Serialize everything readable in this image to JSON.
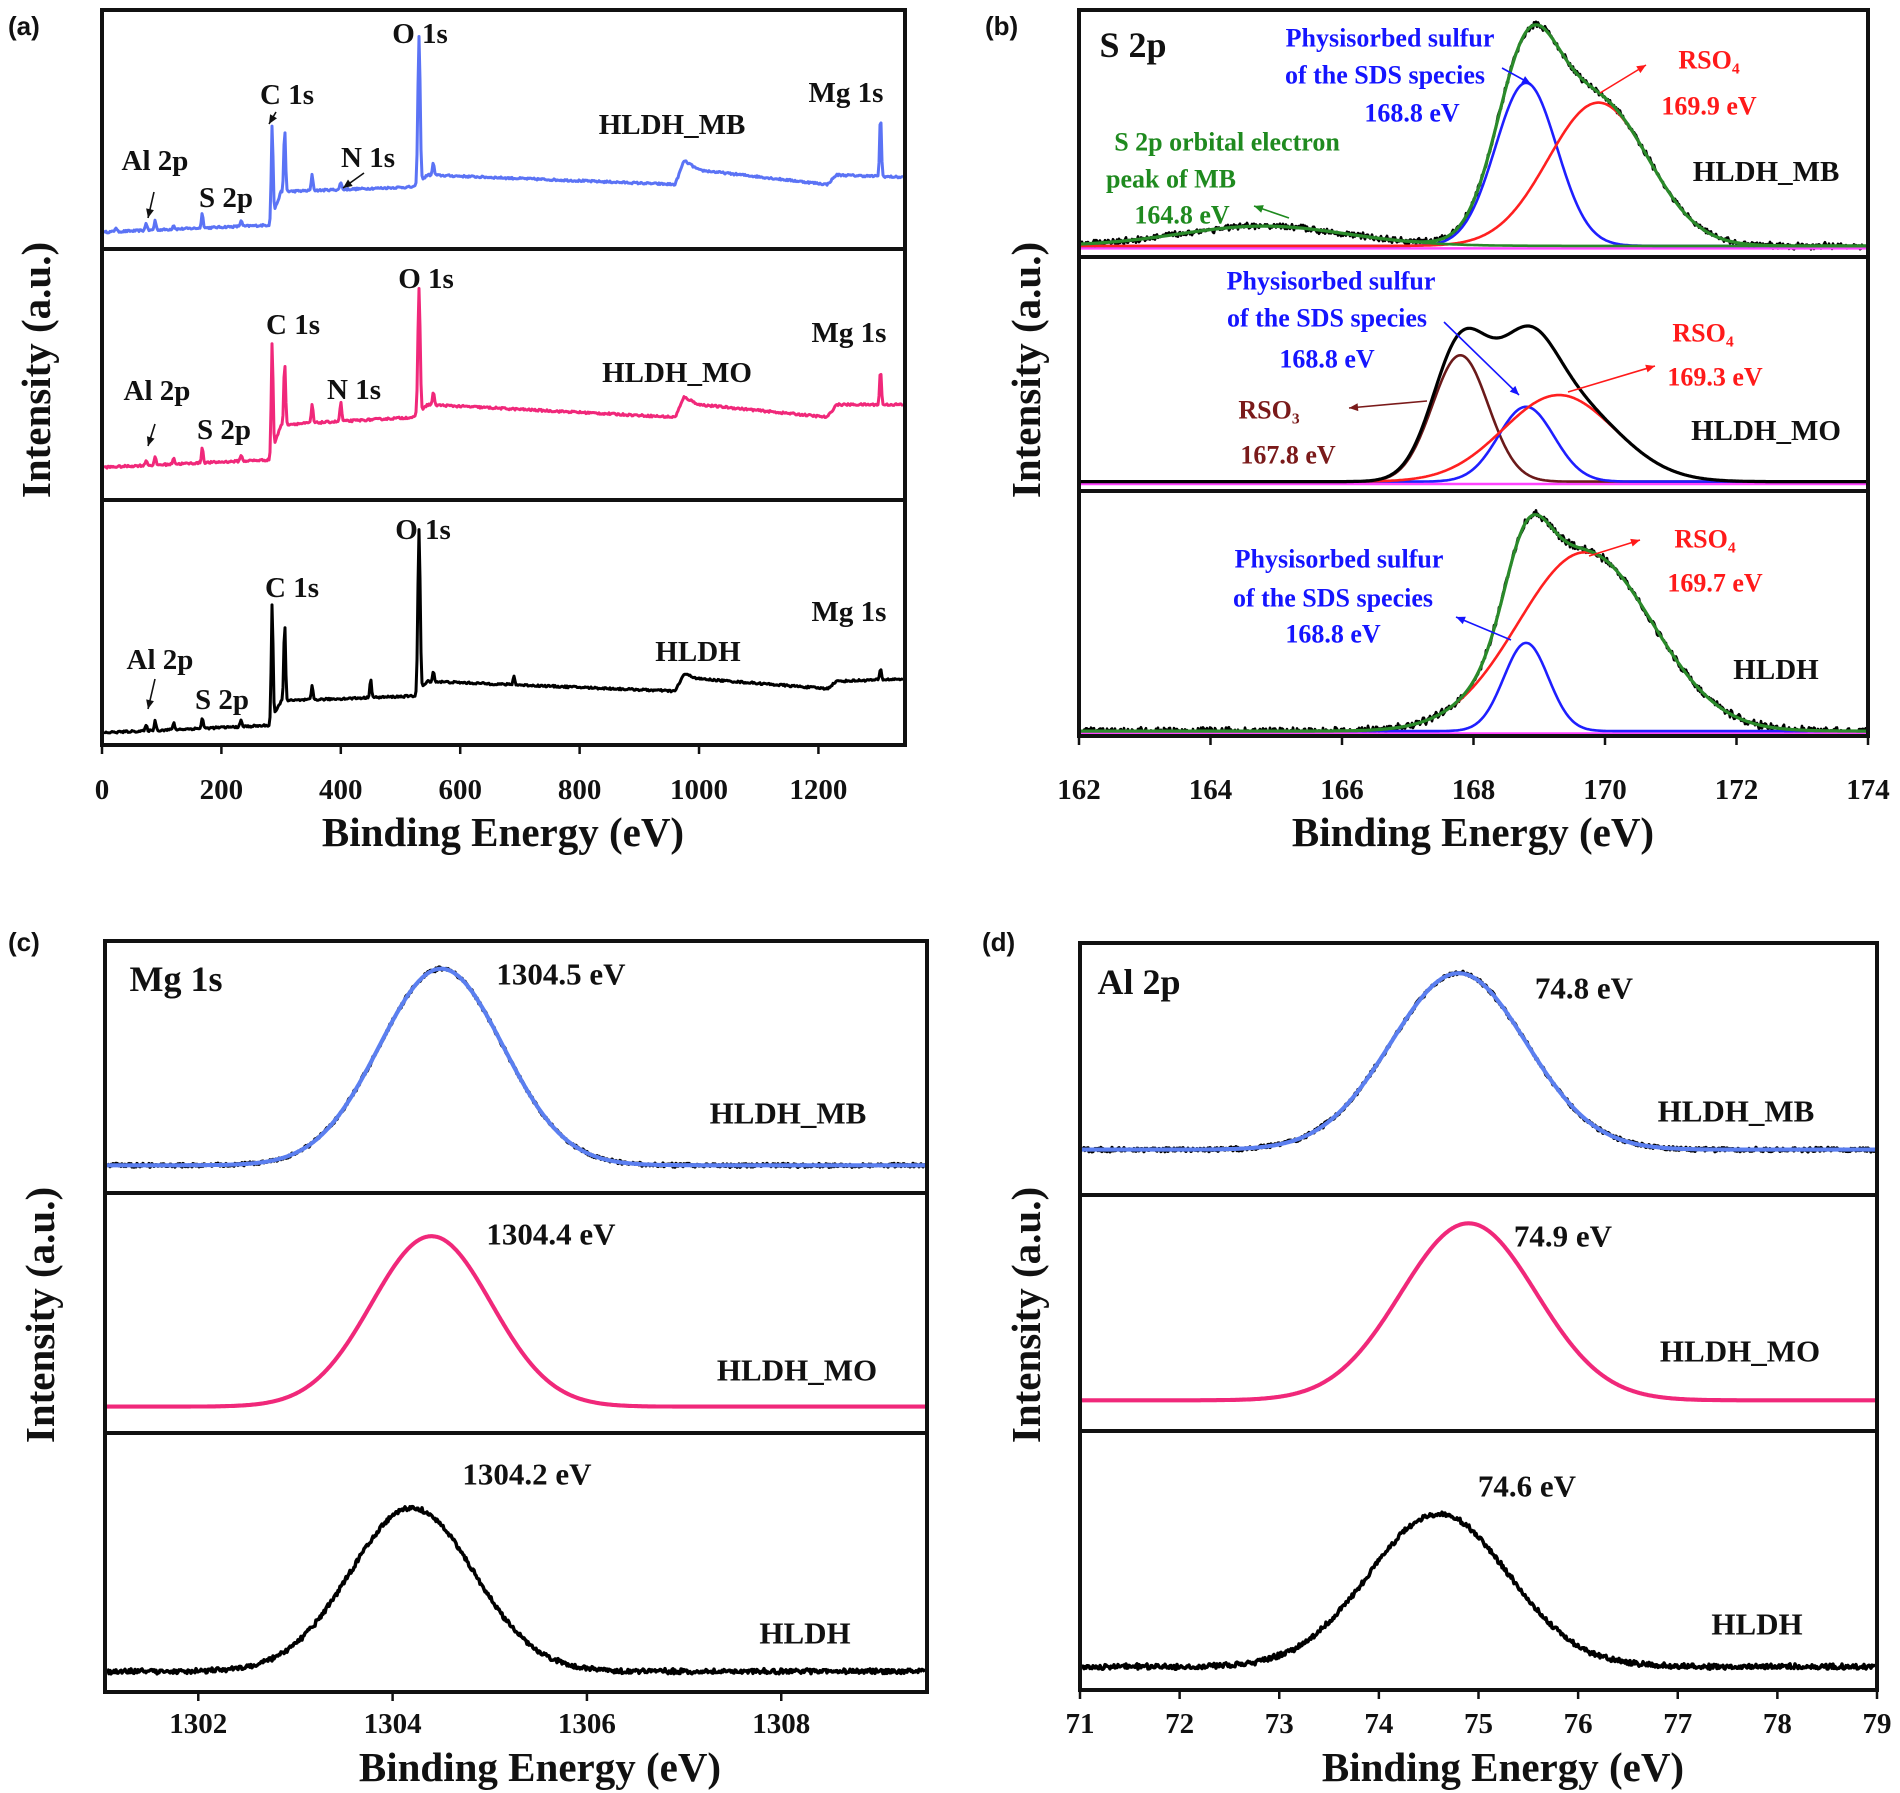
{
  "chart_data": [
    {
      "panel_label": "(a)",
      "type": "line",
      "kind": "survey",
      "title": "",
      "xlabel": "Binding Energy (eV)",
      "ylabel": "Intensity (a.u.)",
      "xlim": [
        0,
        1345
      ],
      "xticks": [
        0,
        200,
        400,
        600,
        800,
        1000,
        1200
      ],
      "traces": [
        {
          "name": "HLDH_MB",
          "color": "#5b73f5",
          "background": [
            [
              0,
              0.07
            ],
            [
              280,
              0.1
            ],
            [
              300,
              0.24
            ],
            [
              525,
              0.26
            ],
            [
              545,
              0.31
            ],
            [
              960,
              0.27
            ],
            [
              975,
              0.37
            ],
            [
              1000,
              0.33
            ],
            [
              1215,
              0.27
            ],
            [
              1230,
              0.31
            ],
            [
              1345,
              0.3
            ]
          ],
          "peaks": [
            {
              "label": "Al 2p",
              "energy_eV": 74,
              "intensity": 0.11
            },
            {
              "label": "S 2p",
              "energy_eV": 168,
              "intensity": 0.15
            },
            {
              "label": "C 1s",
              "energy_eV": 285,
              "intensity": 0.52
            },
            {
              "label": "N 1s",
              "energy_eV": 400,
              "intensity": 0.28
            },
            {
              "label": "O 1s",
              "energy_eV": 531,
              "intensity": 0.89
            },
            {
              "label": "Mg 1s",
              "energy_eV": 1304,
              "intensity": 0.56
            },
            {
              "energy_eV": 23,
              "intensity": 0.09
            },
            {
              "energy_eV": 89,
              "intensity": 0.12
            },
            {
              "energy_eV": 120,
              "intensity": 0.1
            },
            {
              "energy_eV": 233,
              "intensity": 0.12
            },
            {
              "energy_eV": 306,
              "intensity": 0.5
            },
            {
              "energy_eV": 352,
              "intensity": 0.31
            },
            {
              "energy_eV": 555,
              "intensity": 0.36
            }
          ]
        },
        {
          "name": "HLDH_MO",
          "color": "#f0287a",
          "background": [
            [
              0,
              0.13
            ],
            [
              280,
              0.16
            ],
            [
              300,
              0.3
            ],
            [
              525,
              0.33
            ],
            [
              545,
              0.38
            ],
            [
              960,
              0.33
            ],
            [
              975,
              0.41
            ],
            [
              1000,
              0.38
            ],
            [
              1215,
              0.33
            ],
            [
              1230,
              0.38
            ],
            [
              1345,
              0.38
            ]
          ],
          "peaks": [
            {
              "label": "Al 2p",
              "energy_eV": 74,
              "intensity": 0.16
            },
            {
              "label": "S 2p",
              "energy_eV": 168,
              "intensity": 0.21
            },
            {
              "label": "C 1s",
              "energy_eV": 285,
              "intensity": 0.63
            },
            {
              "label": "N 1s",
              "energy_eV": 400,
              "intensity": 0.39
            },
            {
              "label": "O 1s",
              "energy_eV": 531,
              "intensity": 0.84
            },
            {
              "label": "Mg 1s",
              "energy_eV": 1304,
              "intensity": 0.52
            },
            {
              "energy_eV": 89,
              "intensity": 0.17
            },
            {
              "energy_eV": 120,
              "intensity": 0.17
            },
            {
              "energy_eV": 233,
              "intensity": 0.18
            },
            {
              "energy_eV": 306,
              "intensity": 0.55
            },
            {
              "energy_eV": 352,
              "intensity": 0.38
            },
            {
              "energy_eV": 555,
              "intensity": 0.43
            }
          ]
        },
        {
          "name": "HLDH",
          "color": "#000000",
          "background": [
            [
              0,
              0.05
            ],
            [
              280,
              0.08
            ],
            [
              300,
              0.18
            ],
            [
              525,
              0.2
            ],
            [
              545,
              0.26
            ],
            [
              960,
              0.22
            ],
            [
              975,
              0.29
            ],
            [
              1000,
              0.27
            ],
            [
              1215,
              0.23
            ],
            [
              1230,
              0.26
            ],
            [
              1345,
              0.27
            ]
          ],
          "peaks": [
            {
              "label": "Al 2p",
              "energy_eV": 74,
              "intensity": 0.08
            },
            {
              "label": "S 2p",
              "energy_eV": 168,
              "intensity": 0.11
            },
            {
              "label": "C 1s",
              "energy_eV": 285,
              "intensity": 0.58
            },
            {
              "label": "O 1s",
              "energy_eV": 531,
              "intensity": 0.88
            },
            {
              "label": "Mg 1s",
              "energy_eV": 1304,
              "intensity": 0.31
            },
            {
              "energy_eV": 89,
              "intensity": 0.1
            },
            {
              "energy_eV": 120,
              "intensity": 0.09
            },
            {
              "energy_eV": 233,
              "intensity": 0.1
            },
            {
              "energy_eV": 306,
              "intensity": 0.5
            },
            {
              "energy_eV": 352,
              "intensity": 0.24
            },
            {
              "energy_eV": 450,
              "intensity": 0.27
            },
            {
              "energy_eV": 555,
              "intensity": 0.3
            },
            {
              "energy_eV": 690,
              "intensity": 0.28
            }
          ]
        }
      ]
    },
    {
      "panel_label": "(b)",
      "type": "line",
      "kind": "fit",
      "show_components": true,
      "title": "S 2p",
      "xlabel": "Binding Energy (eV)",
      "ylabel": "Intensity (a.u.)",
      "xlim": [
        162,
        174
      ],
      "xticks": [
        162,
        164,
        166,
        168,
        170,
        172,
        174
      ],
      "traces": [
        {
          "name": "HLDH_MB",
          "raw_color": "#000000",
          "envelope_color": "#2a8a2a",
          "baseline_color": "#ff44ff",
          "baseline": 0.045,
          "components": [
            {
              "label": "Physisorbed sulfur of the SDS species",
              "center_eV": 168.8,
              "height": 0.66,
              "fwhm_eV": 1.1,
              "color": "#1f1fff"
            },
            {
              "label": "RSO4",
              "center_eV": 169.9,
              "height": 0.58,
              "fwhm_eV": 1.8,
              "color": "#ff2020"
            },
            {
              "label": "S 2p orbital electron peak of MB",
              "center_eV": 164.8,
              "height": 0.08,
              "fwhm_eV": 3.0,
              "color": "#2a8a2a"
            }
          ],
          "annotations": [
            "Physisorbed sulfur",
            "of the SDS species",
            "168.8 eV",
            "RSO₄",
            "169.9 eV",
            "S 2p orbital electron",
            "peak of MB",
            "164.8 eV"
          ]
        },
        {
          "name": "HLDH_MO",
          "raw_color": null,
          "envelope_color": "#000000",
          "baseline_color": "#ff44ff",
          "baseline": 0.04,
          "components": [
            {
              "label": "RSO3",
              "center_eV": 167.8,
              "height": 0.54,
              "fwhm_eV": 1.0,
              "color": "#6b1a1a"
            },
            {
              "label": "Physisorbed sulfur of the SDS species",
              "center_eV": 168.8,
              "height": 0.32,
              "fwhm_eV": 1.0,
              "color": "#1f1fff"
            },
            {
              "label": "RSO4",
              "center_eV": 169.3,
              "height": 0.37,
              "fwhm_eV": 2.0,
              "color": "#ff2020"
            }
          ],
          "annotations": [
            "Physisorbed sulfur",
            "of the SDS species",
            "168.8 eV",
            "RSO₄",
            "169.3 eV",
            "RSO₃",
            "167.8 eV",
            "HLDH_MO"
          ]
        },
        {
          "name": "HLDH",
          "raw_color": "#000000",
          "envelope_color": "#2a8a2a",
          "baseline_color": "#ff44ff",
          "baseline": 0.02,
          "components": [
            {
              "label": "Physisorbed sulfur of the SDS species",
              "center_eV": 168.8,
              "height": 0.36,
              "fwhm_eV": 0.8,
              "color": "#1f1fff"
            },
            {
              "label": "RSO4",
              "center_eV": 169.7,
              "height": 0.73,
              "fwhm_eV": 2.4,
              "color": "#ff2020"
            }
          ],
          "annotations": [
            "Physisorbed sulfur",
            "of the SDS species",
            "168.8 eV",
            "RSO₄",
            "169.7 eV"
          ]
        }
      ]
    },
    {
      "panel_label": "(c)",
      "type": "line",
      "kind": "fit",
      "show_components": false,
      "title": "Mg 1s",
      "xlabel": "Binding Energy (eV)",
      "ylabel": "Intensity (a.u.)",
      "xlim": [
        1301.04,
        1309.5
      ],
      "xticks": [
        1302,
        1304,
        1306,
        1308
      ],
      "traces": [
        {
          "name": "HLDH_MB",
          "raw_color": "#000000",
          "envelope_color": "#5b7ff0",
          "baseline": 0.11,
          "components": [
            {
              "center_eV": 1304.5,
              "height": 0.78,
              "fwhm_eV": 1.5
            }
          ],
          "annotations": [
            "1304.5 eV"
          ]
        },
        {
          "name": "HLDH_MO",
          "raw_color": null,
          "envelope_color": "#f0287a",
          "baseline": 0.11,
          "components": [
            {
              "center_eV": 1304.4,
              "height": 0.71,
              "fwhm_eV": 1.45
            }
          ],
          "annotations": [
            "1304.4 eV"
          ]
        },
        {
          "name": "HLDH",
          "raw_color": "#000000",
          "envelope_color": null,
          "baseline": 0.08,
          "components": [
            {
              "center_eV": 1304.2,
              "height": 0.63,
              "fwhm_eV": 1.5
            }
          ],
          "annotations": [
            "1304.2 eV"
          ]
        }
      ]
    },
    {
      "panel_label": "(d)",
      "type": "line",
      "kind": "fit",
      "show_components": false,
      "title": "Al 2p",
      "xlabel": "Binding Energy (eV)",
      "ylabel": "Intensity (a.u.)",
      "xlim": [
        71,
        79
      ],
      "xticks": [
        71,
        72,
        73,
        74,
        75,
        76,
        77,
        78,
        79
      ],
      "traces": [
        {
          "name": "HLDH_MB",
          "raw_color": "#000000",
          "envelope_color": "#5b7ff0",
          "baseline": 0.18,
          "components": [
            {
              "center_eV": 74.8,
              "height": 0.7,
              "fwhm_eV": 1.6
            }
          ],
          "annotations": [
            "74.8 eV"
          ]
        },
        {
          "name": "HLDH_MO",
          "raw_color": null,
          "envelope_color": "#f0287a",
          "baseline": 0.13,
          "components": [
            {
              "center_eV": 74.9,
              "height": 0.75,
              "fwhm_eV": 1.6
            }
          ],
          "annotations": [
            "74.9 eV"
          ]
        },
        {
          "name": "HLDH",
          "raw_color": "#000000",
          "envelope_color": null,
          "baseline": 0.09,
          "components": [
            {
              "center_eV": 74.6,
              "height": 0.59,
              "fwhm_eV": 1.65
            }
          ],
          "annotations": [
            "74.6 eV"
          ]
        }
      ]
    }
  ]
}
